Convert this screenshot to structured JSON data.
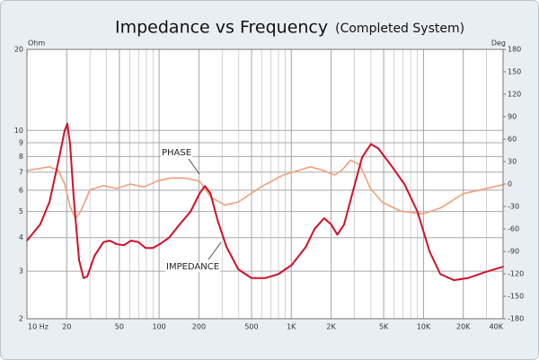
{
  "chart_data": {
    "type": "line",
    "title": "Impedance vs Frequency",
    "subtitle": "(Completed System)",
    "y_label": "Ohm",
    "y2_label": "Deg",
    "xscale": "log",
    "yscale": "log",
    "grid": true,
    "xlim": [
      10,
      40000
    ],
    "ylim": [
      2,
      20
    ],
    "y2lim": [
      -180,
      180
    ],
    "xticks": [
      {
        "value": 10,
        "label": "10  Hz"
      },
      20,
      50,
      100,
      200,
      500,
      {
        "value": 1000,
        "label": "1K"
      },
      {
        "value": 2000,
        "label": "2K"
      },
      {
        "value": 5000,
        "label": "5K"
      },
      {
        "value": 10000,
        "label": "10K"
      },
      {
        "value": 20000,
        "label": "20K"
      },
      {
        "value": 40000,
        "label": "40K"
      }
    ],
    "yticks": [
      2,
      3,
      4,
      5,
      6,
      7,
      8,
      9,
      10,
      20
    ],
    "y2ticks": [
      -180,
      -150,
      -120,
      -90,
      -60,
      -30,
      0,
      30,
      60,
      90,
      120,
      150,
      180
    ],
    "annotations": [
      "PHASE",
      "IMPEDANCE"
    ],
    "series": [
      {
        "name": "IMPEDANCE",
        "color": "#d0102a",
        "axis": "y",
        "x": [
          10,
          12.6,
          14.8,
          17.3,
          19.3,
          20.2,
          21.2,
          22.6,
          24.8,
          26.8,
          28.6,
          32.4,
          37.9,
          42.2,
          47.8,
          54.2,
          61.4,
          69.7,
          79,
          89.6,
          101,
          119,
          143,
          173,
          203,
          222,
          244,
          277,
          323,
          397,
          500,
          634,
          800,
          1010,
          1290,
          1500,
          1770,
          2000,
          2230,
          2510,
          2900,
          3430,
          4000,
          4550,
          5770,
          7200,
          9000,
          11100,
          13400,
          17000,
          21600,
          29400,
          40000
        ],
        "values": [
          3.9,
          4.48,
          5.42,
          7.69,
          10.0,
          10.6,
          8.9,
          5.6,
          3.3,
          2.83,
          2.87,
          3.42,
          3.85,
          3.9,
          3.78,
          3.75,
          3.9,
          3.85,
          3.66,
          3.66,
          3.78,
          4.0,
          4.48,
          5.0,
          5.85,
          6.22,
          5.85,
          4.64,
          3.7,
          3.05,
          2.83,
          2.83,
          2.93,
          3.17,
          3.7,
          4.31,
          4.72,
          4.48,
          4.1,
          4.48,
          5.85,
          7.94,
          8.9,
          8.57,
          7.35,
          6.3,
          5.0,
          3.56,
          2.93,
          2.78,
          2.83,
          2.98,
          3.12
        ]
      },
      {
        "name": "PHASE",
        "color": "#f0a07a",
        "axis": "y2",
        "x": [
          10,
          14.8,
          17.3,
          19.3,
          21.2,
          23.3,
          25.6,
          29.9,
          37.9,
          47.8,
          60.6,
          76.6,
          96.9,
          122,
          155,
          202,
          248,
          314,
          397,
          587,
          868,
          1390,
          1760,
          2120,
          2400,
          2810,
          3290,
          3970,
          4860,
          6650,
          9840,
          13500,
          19900,
          40000
        ],
        "values": [
          18,
          23,
          18,
          0,
          -30,
          -46,
          -36,
          -8,
          -2,
          -6,
          0,
          -4,
          4,
          8,
          8,
          4,
          -18,
          -28,
          -24,
          -4,
          12,
          23,
          18,
          12,
          18,
          32,
          26,
          -6,
          -24,
          -36,
          -40,
          -32,
          -13,
          -1
        ]
      }
    ]
  }
}
